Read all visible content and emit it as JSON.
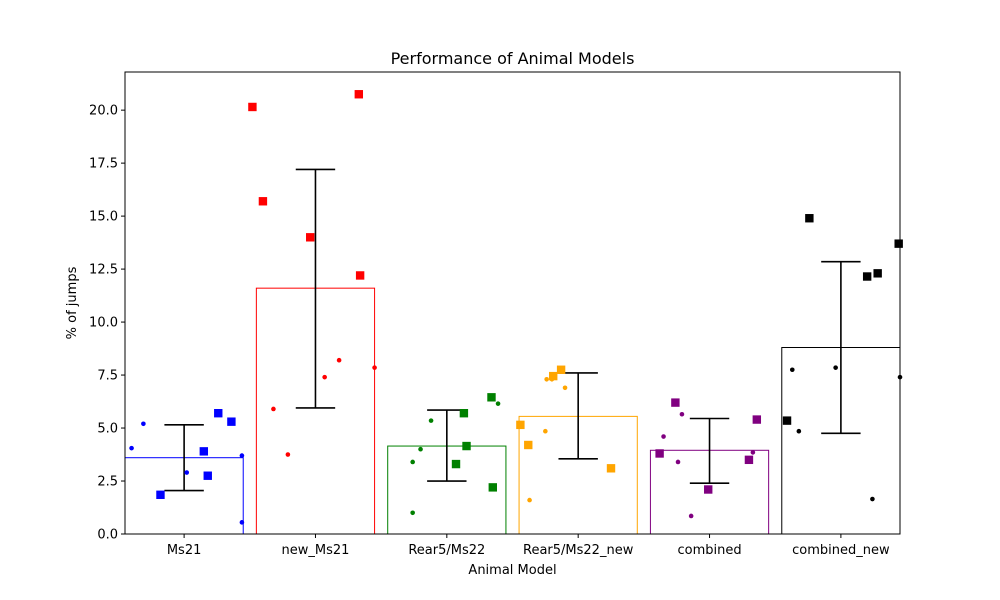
{
  "chart_data": {
    "type": "bar",
    "title": "Performance of Animal Models",
    "xlabel": "Animal Model",
    "ylabel": "% of jumps",
    "ylim": [
      0,
      21.8
    ],
    "yticks": [
      "0.0",
      "2.5",
      "5.0",
      "7.5",
      "10.0",
      "12.5",
      "15.0",
      "17.5",
      "20.0"
    ],
    "categories": [
      "Ms21",
      "new_Ms21",
      "Rear5/Ms22",
      "Rear5/Ms22_new",
      "combined",
      "combined_new"
    ],
    "colors": [
      "#0000ff",
      "#ff0000",
      "#008000",
      "#ffa500",
      "#800080",
      "#000000"
    ],
    "bar_fill": "none",
    "values": [
      3.6,
      11.6,
      4.15,
      5.55,
      3.95,
      8.8
    ],
    "error": [
      {
        "low": 2.05,
        "high": 5.15
      },
      {
        "low": 5.95,
        "high": 17.2
      },
      {
        "low": 2.5,
        "high": 5.85
      },
      {
        "low": 3.55,
        "high": 7.6
      },
      {
        "low": 2.4,
        "high": 5.45
      },
      {
        "low": 4.75,
        "high": 12.85
      }
    ],
    "square_points": [
      [
        {
          "dx": -0.18,
          "y": 1.85
        },
        {
          "dx": 0.15,
          "y": 3.9
        },
        {
          "dx": 0.18,
          "y": 2.75
        },
        {
          "dx": 0.26,
          "y": 5.7
        },
        {
          "dx": 0.36,
          "y": 5.3
        }
      ],
      [
        {
          "dx": -0.48,
          "y": 20.15
        },
        {
          "dx": -0.4,
          "y": 15.7
        },
        {
          "dx": -0.04,
          "y": 14.0
        },
        {
          "dx": 0.33,
          "y": 20.75
        },
        {
          "dx": 0.34,
          "y": 12.2
        }
      ],
      [
        {
          "dx": 0.07,
          "y": 3.3
        },
        {
          "dx": 0.13,
          "y": 5.7
        },
        {
          "dx": 0.15,
          "y": 4.15
        },
        {
          "dx": 0.34,
          "y": 6.45
        },
        {
          "dx": 0.35,
          "y": 2.2
        }
      ],
      [
        {
          "dx": -0.44,
          "y": 5.15
        },
        {
          "dx": -0.38,
          "y": 4.2
        },
        {
          "dx": -0.19,
          "y": 7.45
        },
        {
          "dx": -0.13,
          "y": 7.75
        },
        {
          "dx": 0.25,
          "y": 3.1
        }
      ],
      [
        {
          "dx": -0.38,
          "y": 3.8
        },
        {
          "dx": -0.26,
          "y": 6.2
        },
        {
          "dx": -0.01,
          "y": 2.1
        },
        {
          "dx": 0.3,
          "y": 3.5
        },
        {
          "dx": 0.36,
          "y": 5.4
        }
      ],
      [
        {
          "dx": -0.41,
          "y": 5.35
        },
        {
          "dx": -0.24,
          "y": 14.9
        },
        {
          "dx": 0.2,
          "y": 12.15
        },
        {
          "dx": 0.28,
          "y": 12.3
        },
        {
          "dx": 0.44,
          "y": 13.7
        }
      ]
    ],
    "dot_points": [
      [
        {
          "dx": -0.4,
          "y": 4.05
        },
        {
          "dx": -0.31,
          "y": 5.2
        },
        {
          "dx": 0.02,
          "y": 2.9
        },
        {
          "dx": 0.44,
          "y": 3.7
        },
        {
          "dx": 0.44,
          "y": 0.55
        }
      ],
      [
        {
          "dx": -0.32,
          "y": 5.9
        },
        {
          "dx": -0.21,
          "y": 3.75
        },
        {
          "dx": 0.07,
          "y": 7.4
        },
        {
          "dx": 0.18,
          "y": 8.2
        },
        {
          "dx": 0.45,
          "y": 7.85
        }
      ],
      [
        {
          "dx": -0.26,
          "y": 3.4
        },
        {
          "dx": -0.26,
          "y": 1.0
        },
        {
          "dx": -0.2,
          "y": 4.0
        },
        {
          "dx": -0.12,
          "y": 5.35
        },
        {
          "dx": 0.39,
          "y": 6.15
        }
      ],
      [
        {
          "dx": -0.24,
          "y": 7.3
        },
        {
          "dx": -0.25,
          "y": 4.85
        },
        {
          "dx": -0.37,
          "y": 1.6
        },
        {
          "dx": -0.1,
          "y": 6.9
        },
        {
          "dx": -0.2,
          "y": 7.3
        }
      ],
      [
        {
          "dx": -0.35,
          "y": 4.6
        },
        {
          "dx": -0.24,
          "y": 3.4
        },
        {
          "dx": -0.21,
          "y": 5.65
        },
        {
          "dx": -0.14,
          "y": 0.85
        },
        {
          "dx": 0.33,
          "y": 3.85
        }
      ],
      [
        {
          "dx": -0.37,
          "y": 7.75
        },
        {
          "dx": -0.32,
          "y": 4.85
        },
        {
          "dx": -0.04,
          "y": 7.85
        },
        {
          "dx": 0.24,
          "y": 1.65
        },
        {
          "dx": 0.45,
          "y": 7.4
        }
      ]
    ]
  }
}
